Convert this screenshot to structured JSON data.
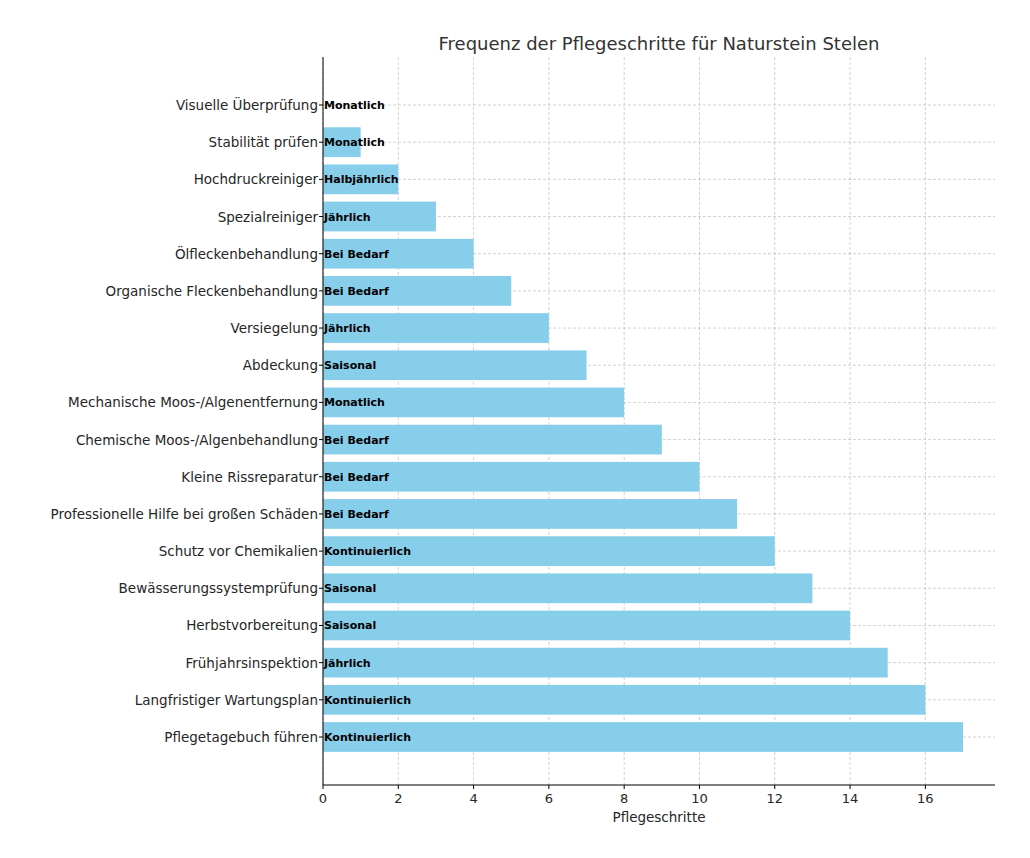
{
  "chart_data": {
    "type": "bar",
    "orientation": "horizontal",
    "title": "Frequenz der Pflegeschritte für Naturstein Stelen",
    "x_label": "Pflegeschritte",
    "categories": [
      "Visuelle Überprüfung",
      "Stabilität prüfen",
      "Hochdruckreiniger",
      "Spezialreiniger",
      "Ölfleckenbehandlung",
      "Organische Fleckenbehandlung",
      "Versiegelung",
      "Abdeckung",
      "Mechanische Moos-/Algenentfernung",
      "Chemische Moos-/Algenbehandlung",
      "Kleine Rissreparatur",
      "Professionelle Hilfe bei großen Schäden",
      "Schutz vor Chemikalien",
      "Bewässerungssystemprüfung",
      "Herbstvorbereitung",
      "Frühjahrsinspektion",
      "Langfristiger Wartungsplan",
      "Pflegetagebuch führen"
    ],
    "values": [
      0,
      1,
      2,
      3,
      4,
      5,
      6,
      7,
      8,
      9,
      10,
      11,
      12,
      13,
      14,
      15,
      16,
      17
    ],
    "annotations": [
      "Monatlich",
      "Monatlich",
      "Halbjährlich",
      "Jährlich",
      "Bei Bedarf",
      "Bei Bedarf",
      "Jährlich",
      "Saisonal",
      "Monatlich",
      "Bei Bedarf",
      "Bei Bedarf",
      "Bei Bedarf",
      "Kontinuierlich",
      "Saisonal",
      "Saisonal",
      "Jährlich",
      "Kontinuierlich",
      "Kontinuierlich"
    ],
    "color": "#87ceeb",
    "xlim": [
      0,
      17.85
    ],
    "xticks": [
      0,
      2,
      4,
      6,
      8,
      10,
      12,
      14,
      16
    ],
    "grid": true
  }
}
